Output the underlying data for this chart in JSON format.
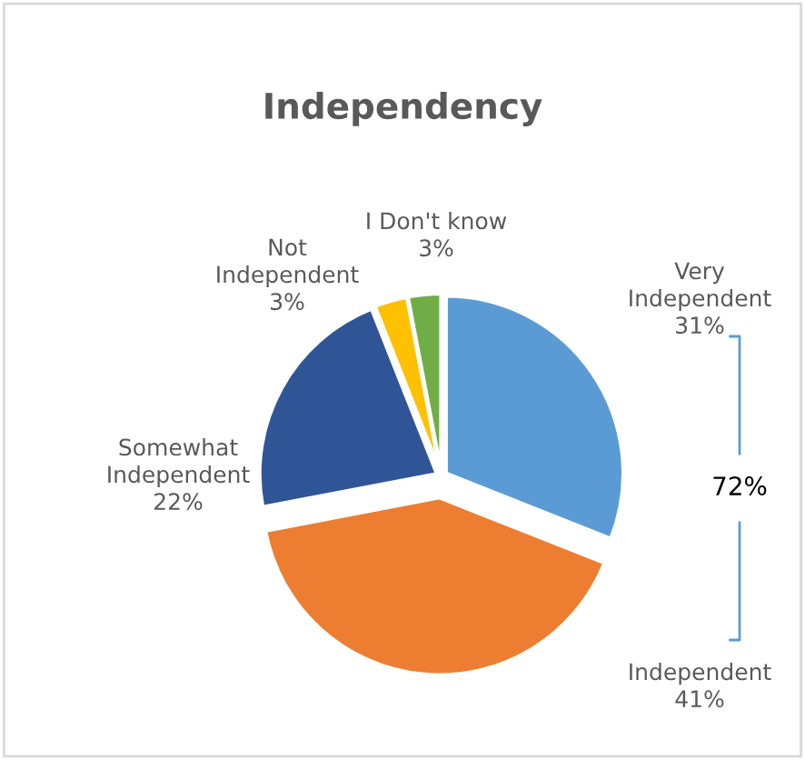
{
  "chart_data": {
    "type": "pie",
    "title": "Independency",
    "categories": [
      "Very Independent",
      "Independent",
      "Somewhat Independent",
      "Not Independent",
      "I Don't know"
    ],
    "values": [
      31,
      41,
      22,
      3,
      3
    ],
    "value_labels": [
      "31%",
      "41%",
      "22%",
      "3%",
      "3%"
    ],
    "colors": [
      "#5b9bd5",
      "#ed7d31",
      "#2f5597",
      "#ffc000",
      "#70ad47"
    ],
    "annotations": [
      "72%"
    ],
    "legend": false
  }
}
